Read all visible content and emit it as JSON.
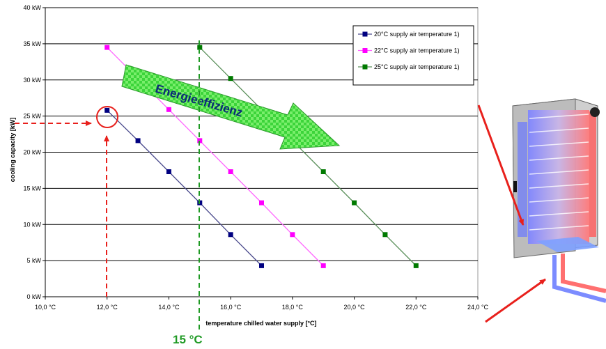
{
  "chart_data": {
    "type": "line",
    "title": "",
    "xlabel": "temperature chilled water supply [°C]",
    "ylabel": "cooling capacity [kW]",
    "xlim": [
      10,
      24
    ],
    "ylim": [
      0,
      40
    ],
    "x_ticks": [
      "10,0 °C",
      "12,0 °C",
      "14,0 °C",
      "16,0 °C",
      "18,0 °C",
      "20,0 °C",
      "22,0 °C",
      "24,0 °C"
    ],
    "y_ticks": [
      "0 kW",
      "5 kW",
      "10 kW",
      "15 kW",
      "20 kW",
      "25 kW",
      "30 kW",
      "35 kW",
      "40 kW"
    ],
    "grid": "horizontal",
    "legend_position": "top-right",
    "series": [
      {
        "name": "20°C supply air temperature 1)",
        "color": "#000080",
        "line_color": "#4a4a8c",
        "x": [
          12,
          13,
          14,
          15,
          16,
          17
        ],
        "y": [
          25.8,
          21.6,
          17.3,
          13.0,
          8.6,
          4.3
        ]
      },
      {
        "name": "22°C supply air temperature 1)",
        "color": "#ff00ff",
        "line_color": "#ff66ff",
        "x": [
          12,
          13,
          14,
          15,
          16,
          17,
          18,
          19
        ],
        "y": [
          34.5,
          30.2,
          25.9,
          21.6,
          17.3,
          13.0,
          8.6,
          4.3
        ]
      },
      {
        "name": "25°C supply air temperature 1)",
        "color": "#007a00",
        "line_color": "#5a8f5a",
        "x": [
          15,
          16,
          17,
          18,
          19,
          20,
          21,
          22
        ],
        "y": [
          34.5,
          30.2,
          25.9,
          21.6,
          17.3,
          13.0,
          8.6,
          4.3
        ]
      }
    ],
    "annotations": {
      "energy_arrow_label": "Energieeffizienz",
      "marker_x_label": "15 °C",
      "marker_x_value": 15,
      "highlight_point": {
        "x": 12,
        "y": 25.8
      }
    }
  }
}
